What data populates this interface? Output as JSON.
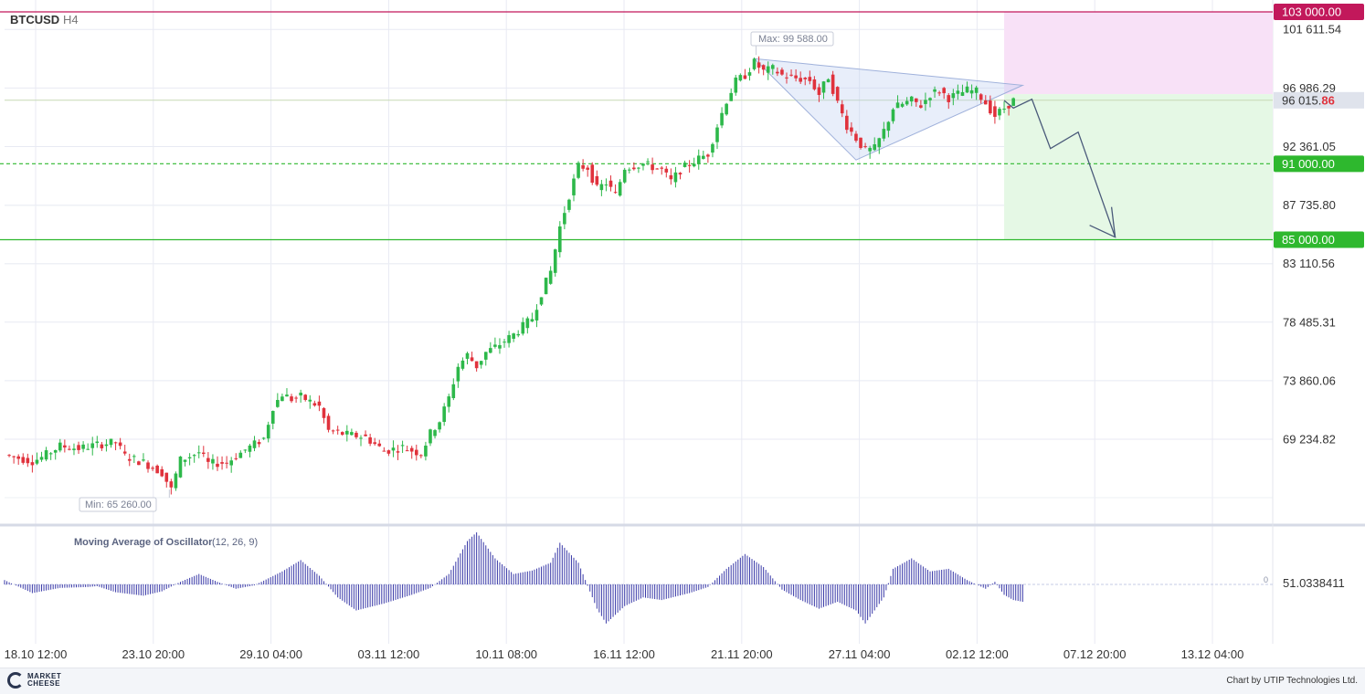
{
  "header": {
    "symbol": "BTCUSD",
    "timeframe": "H4"
  },
  "chart_data": {
    "type": "candlestick",
    "symbol": "BTCUSD",
    "timeframe": "H4",
    "x_ticks": [
      "18.10 12:00",
      "23.10 20:00",
      "29.10 04:00",
      "03.11 12:00",
      "10.11 08:00",
      "16.11 12:00",
      "21.11 20:00",
      "27.11 04:00",
      "02.12 12:00",
      "07.12 20:00",
      "13.12 04:00"
    ],
    "y_ticks": [
      101611.54,
      96986.29,
      92361.05,
      87735.8,
      83110.56,
      78485.31,
      73860.06,
      69234.82
    ],
    "y_tick_labels": [
      "101 611.54",
      "96 986.29",
      "92 361.05",
      "87 735.80",
      "83 110.56",
      "78 485.31",
      "73 860.06",
      "69 234.82"
    ],
    "ylim": [
      64000,
      103800
    ],
    "price_path": [
      [
        0,
        68000
      ],
      [
        3,
        67500
      ],
      [
        4,
        67800
      ],
      [
        6,
        68700
      ],
      [
        8,
        68500
      ],
      [
        10,
        68800
      ],
      [
        12,
        69000
      ],
      [
        13,
        67900
      ],
      [
        15,
        67400
      ],
      [
        17,
        66600
      ],
      [
        18,
        65260
      ],
      [
        19,
        67600
      ],
      [
        21,
        68200
      ],
      [
        22,
        67300
      ],
      [
        24,
        67400
      ],
      [
        26,
        68400
      ],
      [
        28,
        69300
      ],
      [
        29,
        71800
      ],
      [
        30,
        72800
      ],
      [
        31,
        72400
      ],
      [
        32,
        72600
      ],
      [
        34,
        71800
      ],
      [
        35,
        69900
      ],
      [
        37,
        69600
      ],
      [
        39,
        69400
      ],
      [
        41,
        68300
      ],
      [
        43,
        68600
      ],
      [
        45,
        68100
      ],
      [
        46,
        69700
      ],
      [
        47,
        70700
      ],
      [
        48,
        72500
      ],
      [
        49,
        75000
      ],
      [
        50,
        75900
      ],
      [
        51,
        75000
      ],
      [
        52,
        76100
      ],
      [
        53,
        76500
      ],
      [
        55,
        77500
      ],
      [
        57,
        78800
      ],
      [
        58,
        80800
      ],
      [
        59,
        82500
      ],
      [
        60,
        86000
      ],
      [
        61,
        88500
      ],
      [
        62,
        90800
      ],
      [
        63,
        90700
      ],
      [
        64,
        89000
      ],
      [
        65,
        89500
      ],
      [
        66,
        88500
      ],
      [
        67,
        90700
      ],
      [
        69,
        91000
      ],
      [
        71,
        90500
      ],
      [
        72,
        89600
      ],
      [
        73,
        90500
      ],
      [
        74,
        91000
      ],
      [
        76,
        91800
      ],
      [
        77,
        94000
      ],
      [
        78,
        96000
      ],
      [
        79,
        97500
      ],
      [
        80,
        98000
      ],
      [
        81,
        99000
      ],
      [
        82,
        98300
      ],
      [
        83,
        98500
      ],
      [
        84,
        98000
      ],
      [
        85,
        97800
      ],
      [
        87,
        97600
      ],
      [
        88,
        96500
      ],
      [
        89,
        97900
      ],
      [
        90,
        95800
      ],
      [
        91,
        94000
      ],
      [
        92,
        93000
      ],
      [
        93,
        92000
      ],
      [
        94,
        92200
      ],
      [
        95,
        93600
      ],
      [
        96,
        95400
      ],
      [
        98,
        96000
      ],
      [
        99,
        95600
      ],
      [
        100,
        96500
      ],
      [
        101,
        96800
      ],
      [
        102,
        96200
      ],
      [
        104,
        96800
      ],
      [
        105,
        96700
      ],
      [
        106,
        95800
      ],
      [
        107,
        94800
      ],
      [
        108,
        95400
      ],
      [
        109,
        96000
      ]
    ],
    "price_labels": {
      "max": "Max: 99 588.00",
      "min": "Min: 65 260.00",
      "max_value": 99588.0,
      "min_value": 65260.0
    },
    "current_price": {
      "value": 96015.86,
      "label_main": "96 015.",
      "label_tail": "86"
    },
    "levels": [
      {
        "value": 103000,
        "label": "103 000.00",
        "color": "#c2185b",
        "style": "solid"
      },
      {
        "value": 91000,
        "label": "91 000.00",
        "color": "#2eb82e",
        "style": "dashed"
      },
      {
        "value": 85000,
        "label": "85 000.00",
        "color": "#2eb82e",
        "style": "solid"
      }
    ],
    "pattern": "triangle",
    "triangle": [
      [
        81,
        99300
      ],
      [
        92,
        91300
      ],
      [
        110,
        97200
      ]
    ],
    "projection_path": [
      [
        108,
        96000
      ],
      [
        109,
        95400
      ],
      [
        111,
        96100
      ],
      [
        113,
        92200
      ],
      [
        116,
        93500
      ],
      [
        120,
        85200
      ]
    ],
    "risk_zone": {
      "from": 103000,
      "to": 96500,
      "x_start": 108,
      "color": "#f8e1f7"
    },
    "reward_zone": {
      "from": 96500,
      "to": 85000,
      "x_start": 108,
      "color": "#e5f8e5"
    },
    "oscillator": {
      "name": "Moving Average of Oscillator",
      "params": "(12, 26, 9)",
      "value_label": "51.0338411",
      "zero_label": "0",
      "path": [
        [
          0,
          5
        ],
        [
          3,
          -10
        ],
        [
          6,
          -4
        ],
        [
          9,
          -3
        ],
        [
          10,
          -2
        ],
        [
          12,
          -9
        ],
        [
          15,
          -13
        ],
        [
          17,
          -8
        ],
        [
          19,
          3
        ],
        [
          21,
          12
        ],
        [
          23,
          3
        ],
        [
          25,
          -5
        ],
        [
          27,
          -1
        ],
        [
          30,
          15
        ],
        [
          32,
          28
        ],
        [
          34,
          10
        ],
        [
          36,
          -15
        ],
        [
          38,
          -30
        ],
        [
          41,
          -22
        ],
        [
          44,
          -12
        ],
        [
          46,
          -4
        ],
        [
          48,
          12
        ],
        [
          50,
          50
        ],
        [
          51,
          60
        ],
        [
          53,
          30
        ],
        [
          55,
          12
        ],
        [
          57,
          16
        ],
        [
          59,
          25
        ],
        [
          60,
          48
        ],
        [
          62,
          25
        ],
        [
          64,
          -28
        ],
        [
          65,
          -45
        ],
        [
          67,
          -25
        ],
        [
          69,
          -15
        ],
        [
          71,
          -18
        ],
        [
          74,
          -10
        ],
        [
          76,
          -3
        ],
        [
          78,
          18
        ],
        [
          80,
          35
        ],
        [
          82,
          20
        ],
        [
          84,
          -6
        ],
        [
          86,
          -18
        ],
        [
          88,
          -28
        ],
        [
          90,
          -20
        ],
        [
          92,
          -30
        ],
        [
          93,
          -45
        ],
        [
          95,
          -15
        ],
        [
          96,
          18
        ],
        [
          98,
          30
        ],
        [
          100,
          15
        ],
        [
          102,
          18
        ],
        [
          104,
          5
        ],
        [
          106,
          -5
        ],
        [
          107,
          3
        ],
        [
          108,
          -12
        ],
        [
          109,
          -18
        ],
        [
          110,
          -20
        ]
      ]
    }
  },
  "footer": {
    "logo_line1": "MARKET",
    "logo_line2": "CHEESE",
    "credit": "Chart by UTIP Technologies Ltd."
  }
}
